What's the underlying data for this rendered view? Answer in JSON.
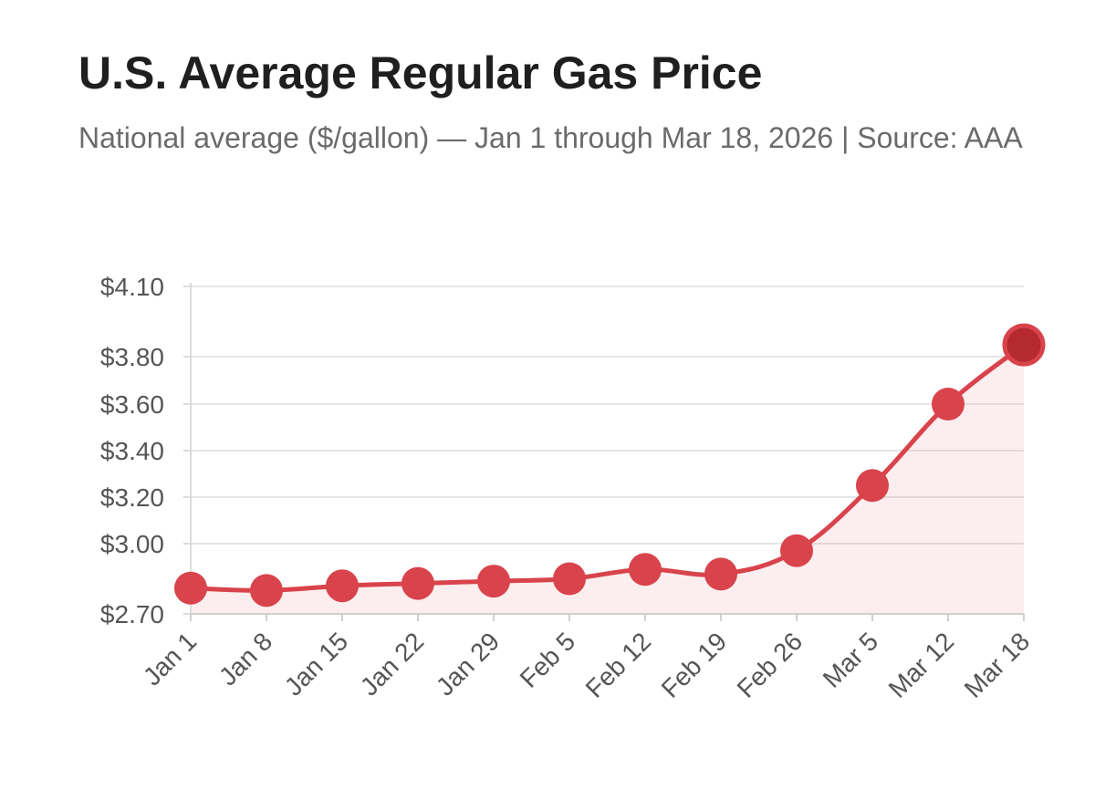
{
  "header": {
    "title": "U.S. Average Regular Gas Price",
    "subtitle": "National average ($/gallon) — Jan 1 through Mar 18, 2026  | Source: AAA"
  },
  "chart_data": {
    "type": "line",
    "title": "U.S. Average Regular Gas Price",
    "subtitle": "National average ($/gallon) — Jan 1 through Mar 18, 2026  | Source: AAA",
    "xlabel": "",
    "ylabel": "",
    "categories": [
      "Jan 1",
      "Jan 8",
      "Jan 15",
      "Jan 22",
      "Jan 29",
      "Feb 5",
      "Feb 12",
      "Feb 19",
      "Feb 26",
      "Mar 5",
      "Mar 12",
      "Mar 18"
    ],
    "series": [
      {
        "values": [
          2.81,
          2.8,
          2.82,
          2.83,
          2.84,
          2.85,
          2.89,
          2.87,
          2.97,
          3.25,
          3.6,
          3.85
        ],
        "color": "#d9434b",
        "fill": "area",
        "highlight_last": true,
        "highlight_color": "#b52a2f"
      }
    ],
    "y_ticks": [
      2.7,
      3.0,
      3.2,
      3.4,
      3.6,
      3.8,
      4.1
    ],
    "y_tick_labels": [
      "$2.70",
      "$3.00",
      "$3.20",
      "$3.40",
      "$3.60",
      "$3.80",
      "$4.10"
    ],
    "ylim": [
      2.7,
      4.1
    ],
    "grid": true,
    "legend": "none"
  }
}
